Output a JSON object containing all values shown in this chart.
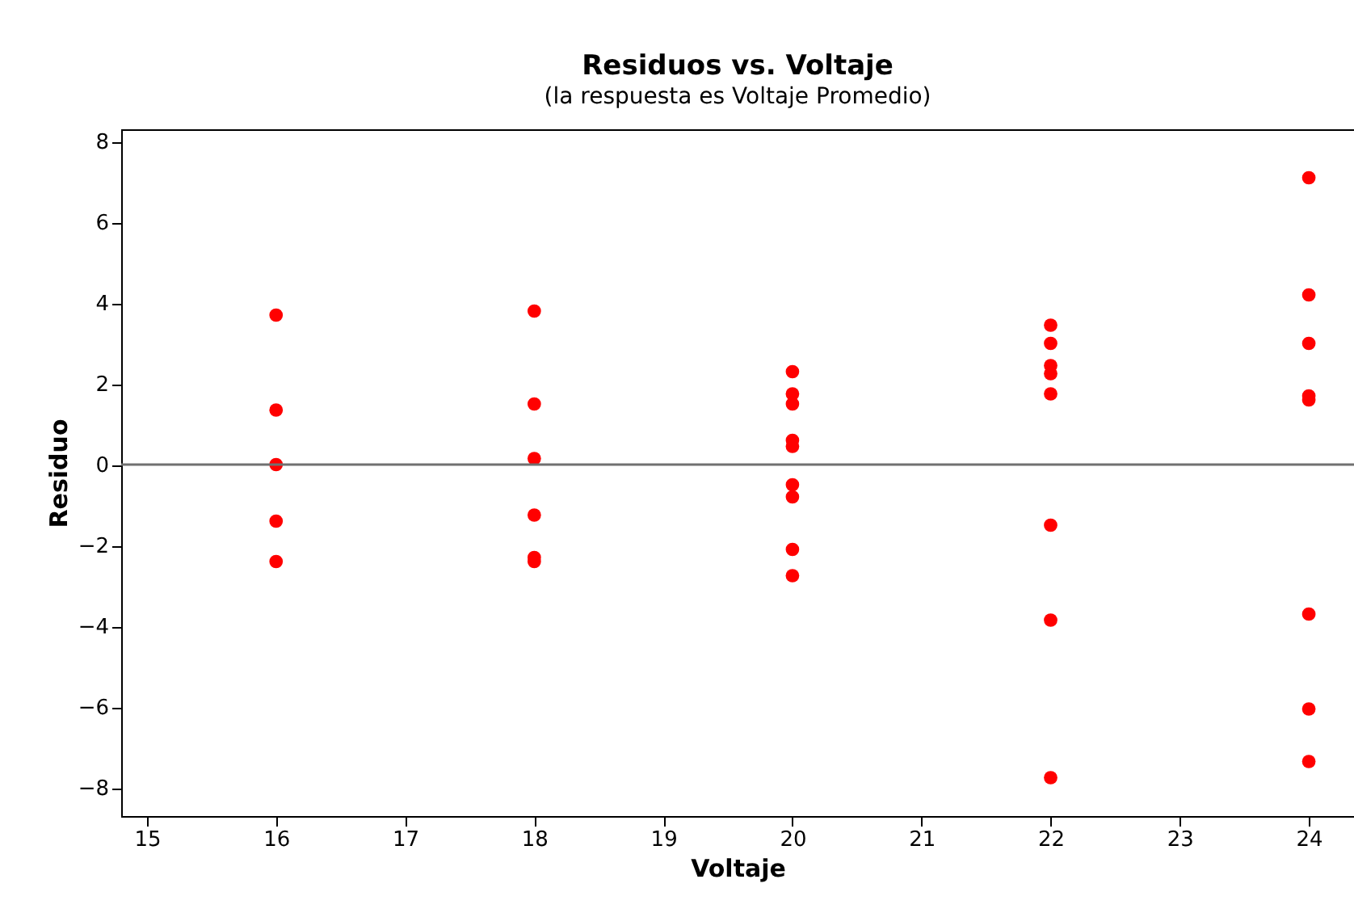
{
  "chart_data": {
    "type": "scatter",
    "title": "Residuos vs. Voltaje",
    "subtitle": "(la respuesta es Voltaje Promedio)",
    "xlabel": "Voltaje",
    "ylabel": "Residuo",
    "x": [
      16,
      16,
      16,
      16,
      16,
      18,
      18,
      18,
      18,
      18,
      18,
      20,
      20,
      20,
      20,
      20,
      20,
      20,
      20,
      20,
      22,
      22,
      22,
      22,
      22,
      22,
      22,
      22,
      24,
      24,
      24,
      24,
      24,
      24,
      24,
      24
    ],
    "values": [
      3.7,
      1.35,
      0.0,
      -1.4,
      -2.4,
      3.8,
      1.5,
      0.15,
      -1.25,
      -2.3,
      -2.4,
      2.3,
      1.75,
      1.5,
      0.6,
      0.45,
      -0.5,
      -0.8,
      -2.1,
      -2.75,
      3.45,
      3.0,
      2.45,
      2.25,
      1.75,
      -1.5,
      -3.85,
      -7.75,
      7.1,
      4.2,
      3.0,
      1.7,
      1.6,
      -3.7,
      -6.05,
      -7.35
    ],
    "color": "#ff0000",
    "marker": "circle",
    "xlim": [
      14.8,
      24.35
    ],
    "xticks": [
      15,
      16,
      17,
      18,
      19,
      20,
      21,
      22,
      23,
      24
    ],
    "ylim": [
      -8.7,
      8.3
    ],
    "yticks": [
      -8,
      -6,
      -4,
      -2,
      0,
      2,
      4,
      6,
      8
    ],
    "ref_lines": [
      {
        "axis": "y",
        "value": 0,
        "color": "#707070"
      }
    ],
    "grid": false
  }
}
